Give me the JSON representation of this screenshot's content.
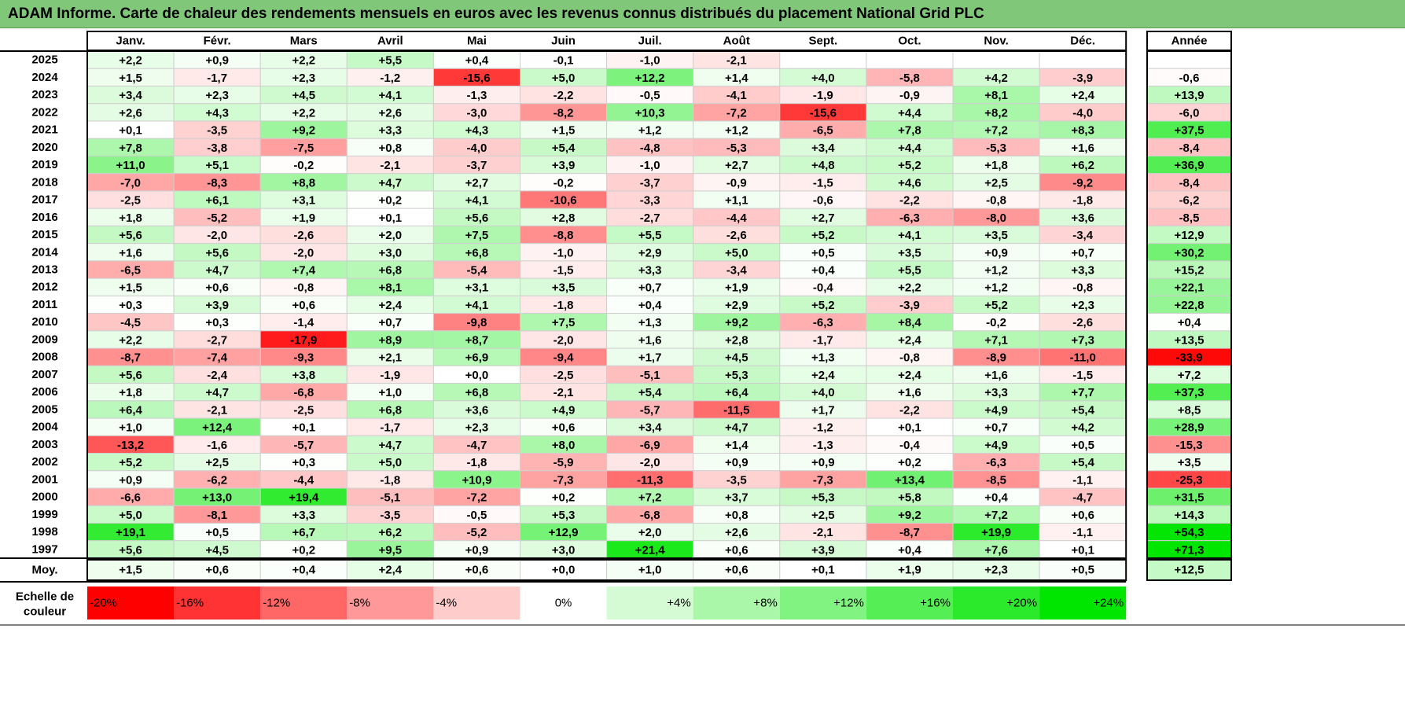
{
  "title": "ADAM Informe. Carte de chaleur des rendements mensuels en euros avec les revenus connus distribués du placement National Grid PLC",
  "chart_data": {
    "type": "heatmap",
    "columns": [
      "Janv.",
      "Févr.",
      "Mars",
      "Avril",
      "Mai",
      "Juin",
      "Juil.",
      "Août",
      "Sept.",
      "Oct.",
      "Nov.",
      "Déc."
    ],
    "year_header": "Année",
    "rows": [
      {
        "year": "2025",
        "months": [
          "+2,2",
          "+0,9",
          "+2,2",
          "+5,5",
          "+0,4",
          "-0,1",
          "-1,0",
          "-2,1",
          "",
          "",
          "",
          ""
        ],
        "annual": ""
      },
      {
        "year": "2024",
        "months": [
          "+1,5",
          "-1,7",
          "+2,3",
          "-1,2",
          "-15,6",
          "+5,0",
          "+12,2",
          "+1,4",
          "+4,0",
          "-5,8",
          "+4,2",
          "-3,9"
        ],
        "annual": "-0,6"
      },
      {
        "year": "2023",
        "months": [
          "+3,4",
          "+2,3",
          "+4,5",
          "+4,1",
          "-1,3",
          "-2,2",
          "-0,5",
          "-4,1",
          "-1,9",
          "-0,9",
          "+8,1",
          "+2,4"
        ],
        "annual": "+13,9"
      },
      {
        "year": "2022",
        "months": [
          "+2,6",
          "+4,3",
          "+2,2",
          "+2,6",
          "-3,0",
          "-8,2",
          "+10,3",
          "-7,2",
          "-15,6",
          "+4,4",
          "+8,2",
          "-4,0"
        ],
        "annual": "-6,0"
      },
      {
        "year": "2021",
        "months": [
          "+0,1",
          "-3,5",
          "+9,2",
          "+3,3",
          "+4,3",
          "+1,5",
          "+1,2",
          "+1,2",
          "-6,5",
          "+7,8",
          "+7,2",
          "+8,3"
        ],
        "annual": "+37,5"
      },
      {
        "year": "2020",
        "months": [
          "+7,8",
          "-3,8",
          "-7,5",
          "+0,8",
          "-4,0",
          "+5,4",
          "-4,8",
          "-5,3",
          "+3,4",
          "+4,4",
          "-5,3",
          "+1,6"
        ],
        "annual": "-8,4"
      },
      {
        "year": "2019",
        "months": [
          "+11,0",
          "+5,1",
          "-0,2",
          "-2,1",
          "-3,7",
          "+3,9",
          "-1,0",
          "+2,7",
          "+4,8",
          "+5,2",
          "+1,8",
          "+6,2"
        ],
        "annual": "+36,9"
      },
      {
        "year": "2018",
        "months": [
          "-7,0",
          "-8,3",
          "+8,8",
          "+4,7",
          "+2,7",
          "-0,2",
          "-3,7",
          "-0,9",
          "-1,5",
          "+4,6",
          "+2,5",
          "-9,2"
        ],
        "annual": "-8,4"
      },
      {
        "year": "2017",
        "months": [
          "-2,5",
          "+6,1",
          "+3,1",
          "+0,2",
          "+4,1",
          "-10,6",
          "-3,3",
          "+1,1",
          "-0,6",
          "-2,2",
          "-0,8",
          "-1,8"
        ],
        "annual": "-6,2"
      },
      {
        "year": "2016",
        "months": [
          "+1,8",
          "-5,2",
          "+1,9",
          "+0,1",
          "+5,6",
          "+2,8",
          "-2,7",
          "-4,4",
          "+2,7",
          "-6,3",
          "-8,0",
          "+3,6"
        ],
        "annual": "-8,5"
      },
      {
        "year": "2015",
        "months": [
          "+5,6",
          "-2,0",
          "-2,6",
          "+2,0",
          "+7,5",
          "-8,8",
          "+5,5",
          "-2,6",
          "+5,2",
          "+4,1",
          "+3,5",
          "-3,4"
        ],
        "annual": "+12,9"
      },
      {
        "year": "2014",
        "months": [
          "+1,6",
          "+5,6",
          "-2,0",
          "+3,0",
          "+6,8",
          "-1,0",
          "+2,9",
          "+5,0",
          "+0,5",
          "+3,5",
          "+0,9",
          "+0,7"
        ],
        "annual": "+30,2"
      },
      {
        "year": "2013",
        "months": [
          "-6,5",
          "+4,7",
          "+7,4",
          "+6,8",
          "-5,4",
          "-1,5",
          "+3,3",
          "-3,4",
          "+0,4",
          "+5,5",
          "+1,2",
          "+3,3"
        ],
        "annual": "+15,2"
      },
      {
        "year": "2012",
        "months": [
          "+1,5",
          "+0,6",
          "-0,8",
          "+8,1",
          "+3,1",
          "+3,5",
          "+0,7",
          "+1,9",
          "-0,4",
          "+2,2",
          "+1,2",
          "-0,8"
        ],
        "annual": "+22,1"
      },
      {
        "year": "2011",
        "months": [
          "+0,3",
          "+3,9",
          "+0,6",
          "+2,4",
          "+4,1",
          "-1,8",
          "+0,4",
          "+2,9",
          "+5,2",
          "-3,9",
          "+5,2",
          "+2,3"
        ],
        "annual": "+22,8"
      },
      {
        "year": "2010",
        "months": [
          "-4,5",
          "+0,3",
          "-1,4",
          "+0,7",
          "-9,8",
          "+7,5",
          "+1,3",
          "+9,2",
          "-6,3",
          "+8,4",
          "-0,2",
          "-2,6"
        ],
        "annual": "+0,4"
      },
      {
        "year": "2009",
        "months": [
          "+2,2",
          "-2,7",
          "-17,9",
          "+8,9",
          "+8,7",
          "-2,0",
          "+1,6",
          "+2,8",
          "-1,7",
          "+2,4",
          "+7,1",
          "+7,3"
        ],
        "annual": "+13,5"
      },
      {
        "year": "2008",
        "months": [
          "-8,7",
          "-7,4",
          "-9,3",
          "+2,1",
          "+6,9",
          "-9,4",
          "+1,7",
          "+4,5",
          "+1,3",
          "-0,8",
          "-8,9",
          "-11,0"
        ],
        "annual": "-33,9"
      },
      {
        "year": "2007",
        "months": [
          "+5,6",
          "-2,4",
          "+3,8",
          "-1,9",
          "+0,0",
          "-2,5",
          "-5,1",
          "+5,3",
          "+2,4",
          "+2,4",
          "+1,6",
          "-1,5"
        ],
        "annual": "+7,2"
      },
      {
        "year": "2006",
        "months": [
          "+1,8",
          "+4,7",
          "-6,8",
          "+1,0",
          "+6,8",
          "-2,1",
          "+5,4",
          "+6,4",
          "+4,0",
          "+1,6",
          "+3,3",
          "+7,7"
        ],
        "annual": "+37,3"
      },
      {
        "year": "2005",
        "months": [
          "+6,4",
          "-2,1",
          "-2,5",
          "+6,8",
          "+3,6",
          "+4,9",
          "-5,7",
          "-11,5",
          "+1,7",
          "-2,2",
          "+4,9",
          "+5,4"
        ],
        "annual": "+8,5"
      },
      {
        "year": "2004",
        "months": [
          "+1,0",
          "+12,4",
          "+0,1",
          "-1,7",
          "+2,3",
          "+0,6",
          "+3,4",
          "+4,7",
          "-1,2",
          "+0,1",
          "+0,7",
          "+4,2"
        ],
        "annual": "+28,9"
      },
      {
        "year": "2003",
        "months": [
          "-13,2",
          "-1,6",
          "-5,7",
          "+4,7",
          "-4,7",
          "+8,0",
          "-6,9",
          "+1,4",
          "-1,3",
          "-0,4",
          "+4,9",
          "+0,5"
        ],
        "annual": "-15,3"
      },
      {
        "year": "2002",
        "months": [
          "+5,2",
          "+2,5",
          "+0,3",
          "+5,0",
          "-1,8",
          "-5,9",
          "-2,0",
          "+0,9",
          "+0,9",
          "+0,2",
          "-6,3",
          "+5,4"
        ],
        "annual": "+3,5"
      },
      {
        "year": "2001",
        "months": [
          "+0,9",
          "-6,2",
          "-4,4",
          "-1,8",
          "+10,9",
          "-7,3",
          "-11,3",
          "-3,5",
          "-7,3",
          "+13,4",
          "-8,5",
          "-1,1"
        ],
        "annual": "-25,3"
      },
      {
        "year": "2000",
        "months": [
          "-6,6",
          "+13,0",
          "+19,4",
          "-5,1",
          "-7,2",
          "+0,2",
          "+7,2",
          "+3,7",
          "+5,3",
          "+5,8",
          "+0,4",
          "-4,7"
        ],
        "annual": "+31,5"
      },
      {
        "year": "1999",
        "months": [
          "+5,0",
          "-8,1",
          "+3,3",
          "-3,5",
          "-0,5",
          "+5,3",
          "-6,8",
          "+0,8",
          "+2,5",
          "+9,2",
          "+7,2",
          "+0,6"
        ],
        "annual": "+14,3"
      },
      {
        "year": "1998",
        "months": [
          "+19,1",
          "+0,5",
          "+6,7",
          "+6,2",
          "-5,2",
          "+12,9",
          "+2,0",
          "+2,6",
          "-2,1",
          "-8,7",
          "+19,9",
          "-1,1"
        ],
        "annual": "+54,3"
      },
      {
        "year": "1997",
        "months": [
          "+5,6",
          "+4,5",
          "+0,2",
          "+9,5",
          "+0,9",
          "+3,0",
          "+21,4",
          "+0,6",
          "+3,9",
          "+0,4",
          "+7,6",
          "+0,1"
        ],
        "annual": "+71,3"
      }
    ],
    "average": {
      "label": "Moy.",
      "months": [
        "+1,5",
        "+0,6",
        "+0,4",
        "+2,4",
        "+0,6",
        "+0,0",
        "+1,0",
        "+0,6",
        "+0,1",
        "+1,9",
        "+2,3",
        "+0,5"
      ],
      "annual": "+12,5"
    },
    "scale": {
      "label_line1": "Echelle de",
      "label_line2": "couleur",
      "steps": [
        "-20%",
        "-16%",
        "-12%",
        "-8%",
        "-4%",
        "0%",
        "+4%",
        "+8%",
        "+12%",
        "+16%",
        "+20%",
        "+24%"
      ],
      "step_values": [
        -20,
        -16,
        -12,
        -8,
        -4,
        0,
        4,
        8,
        12,
        16,
        20,
        24
      ]
    },
    "colors": {
      "negative_max": "#ff0000",
      "neutral": "#ffffff",
      "positive_max": "#00e000",
      "title_bg": "#80c77a"
    }
  }
}
